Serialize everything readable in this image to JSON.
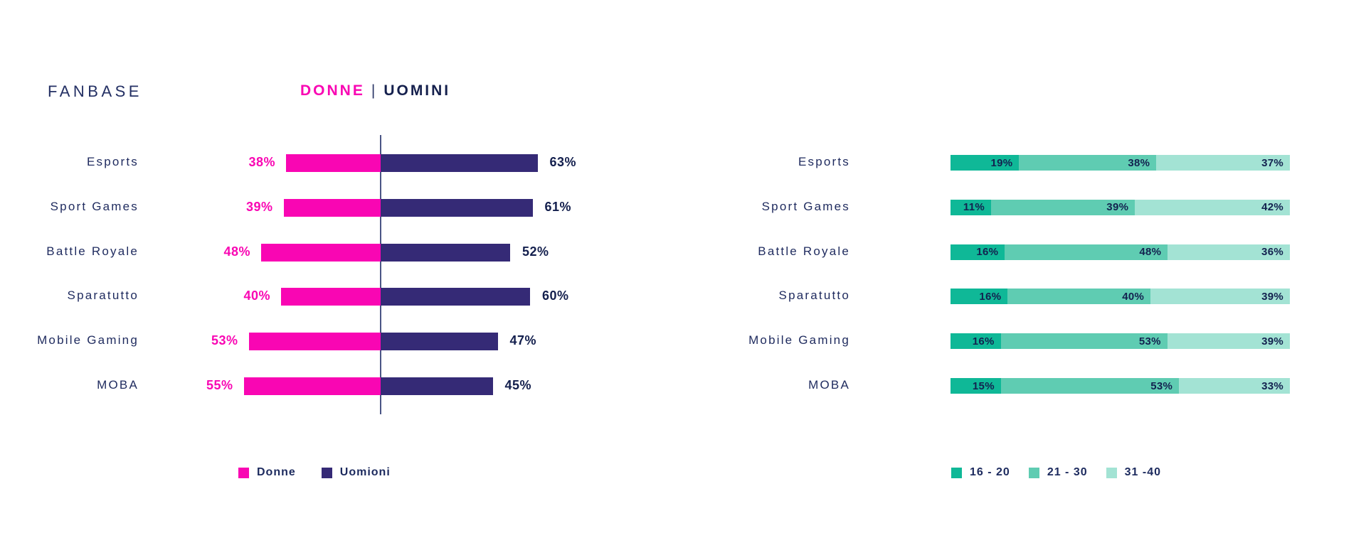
{
  "header": {
    "brand": "FANBASE",
    "title_donne": "DONNE",
    "title_separator": "|",
    "title_uomini": "UOMINI"
  },
  "colors": {
    "donne": "#F906B3",
    "uomini": "#352A76",
    "age_16_20": "#0FB897",
    "age_21_30": "#5FCCB2",
    "age_31_40": "#A3E3D4",
    "text_navy": "#1E2A5E",
    "axis": "#4A5585"
  },
  "chart_data": [
    {
      "type": "bar",
      "subtype": "diverging",
      "title": "DONNE | UOMINI",
      "unit": "%",
      "categories": [
        "Esports",
        "Sport Games",
        "Battle Royale",
        "Sparatutto",
        "Mobile Gaming",
        "MOBA"
      ],
      "series": [
        {
          "name": "Donne",
          "color": "#F906B3",
          "values": [
            38,
            39,
            48,
            40,
            53,
            55
          ]
        },
        {
          "name": "Uomioni",
          "color": "#352A76",
          "values": [
            63,
            61,
            52,
            60,
            47,
            45
          ]
        }
      ],
      "layout": {
        "center_axis": true,
        "value_labels": "outside",
        "legend_position": "bottom",
        "grid": false
      }
    },
    {
      "type": "bar",
      "subtype": "stacked",
      "title": "",
      "unit": "%",
      "categories": [
        "Esports",
        "Sport Games",
        "Battle Royale",
        "Sparatutto",
        "Mobile Gaming",
        "MOBA"
      ],
      "series": [
        {
          "name": "16 - 20",
          "color": "#0FB897",
          "values": [
            19,
            11,
            16,
            16,
            16,
            15
          ]
        },
        {
          "name": "21 - 30",
          "color": "#5FCCB2",
          "values": [
            38,
            39,
            48,
            40,
            53,
            53
          ]
        },
        {
          "name": "31 -40",
          "color": "#A3E3D4",
          "values": [
            37,
            42,
            36,
            39,
            39,
            33
          ]
        }
      ],
      "layout": {
        "value_labels": "inside-right",
        "legend_position": "bottom",
        "grid": false
      }
    }
  ]
}
